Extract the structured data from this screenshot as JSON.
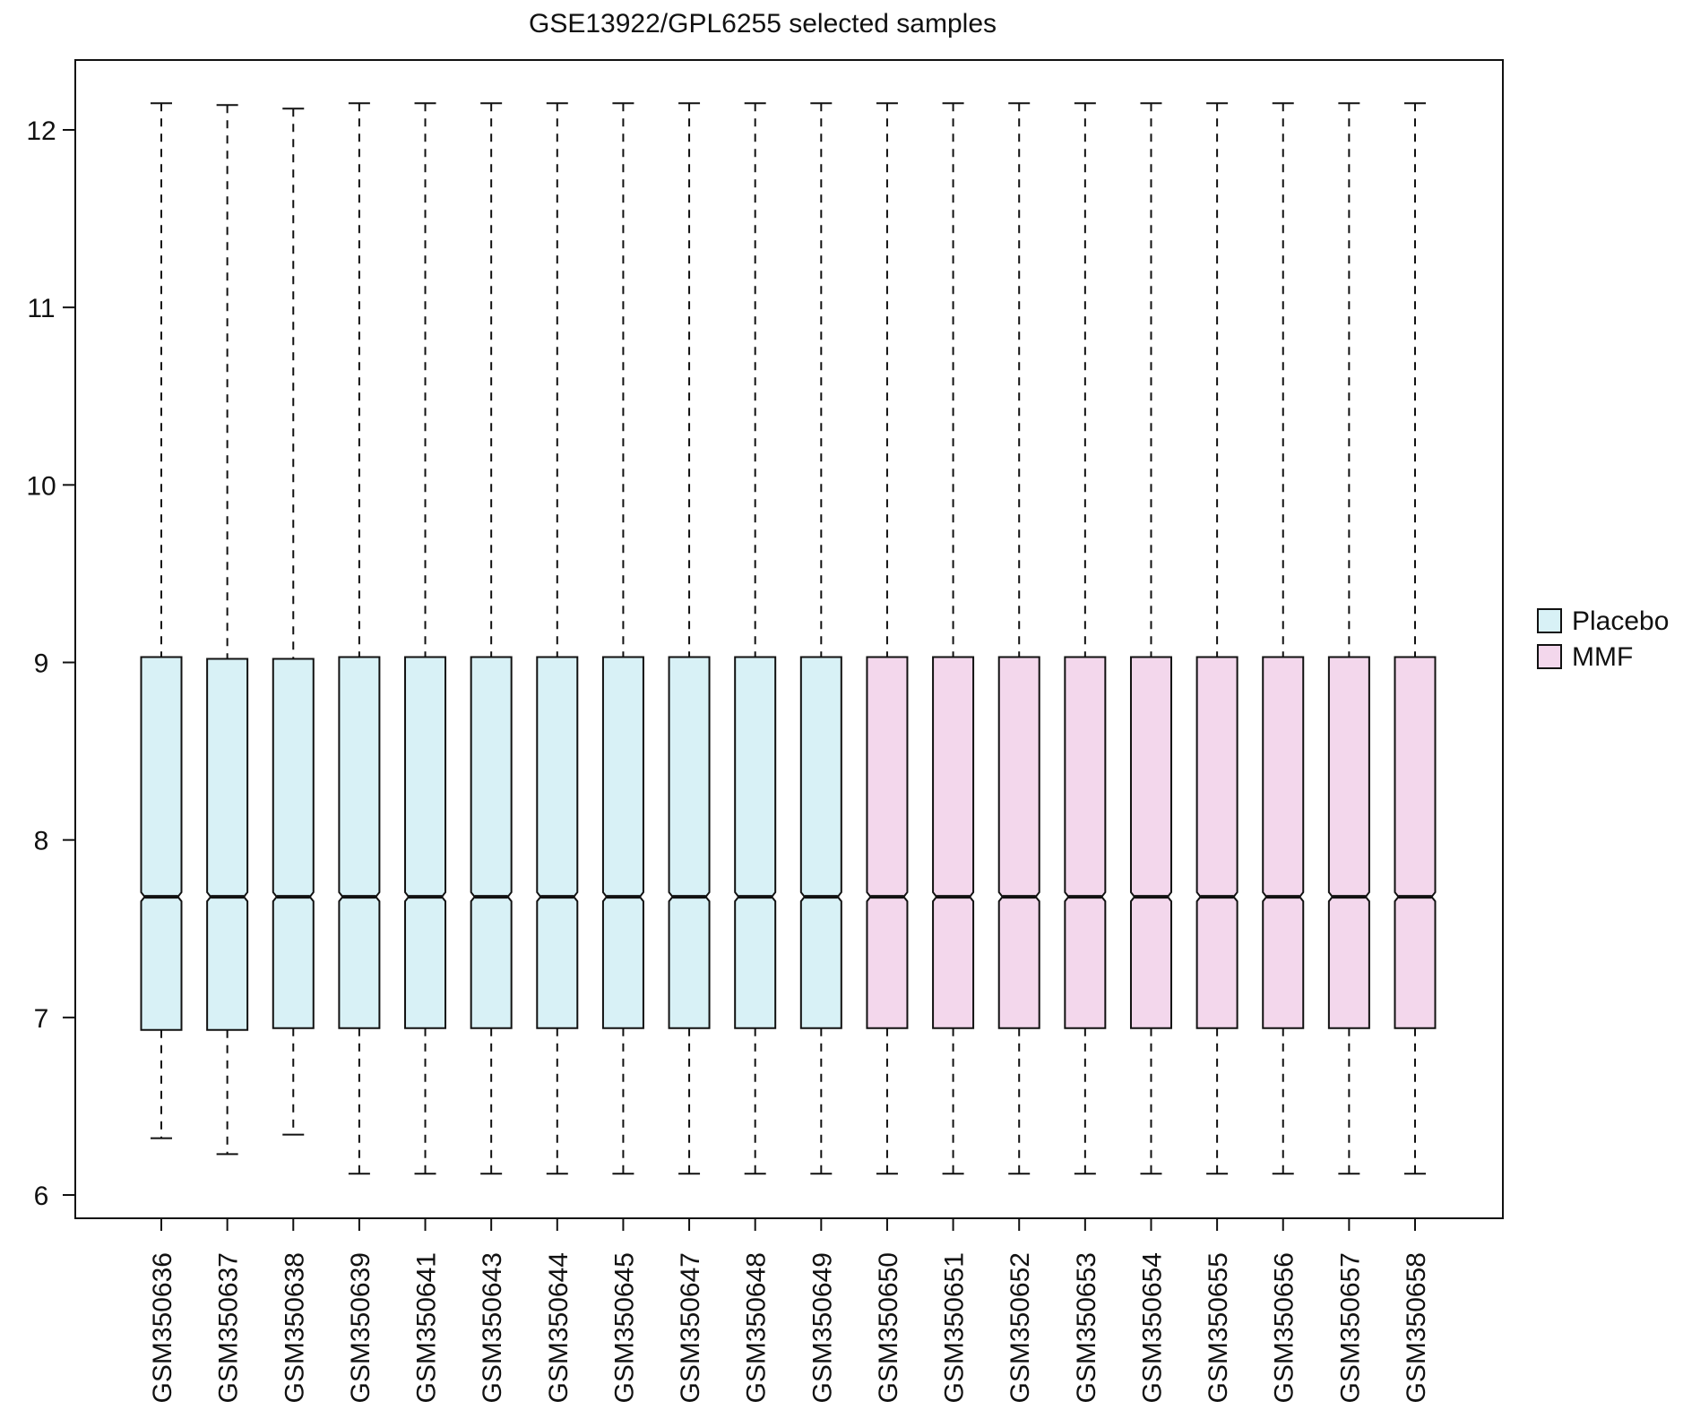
{
  "chart_data": {
    "type": "boxplot",
    "title": "GSE13922/GPL6255 selected samples",
    "xlabel": "",
    "ylabel": "",
    "ylim": [
      5.87,
      12.4
    ],
    "yticks": [
      6,
      7,
      8,
      9,
      10,
      11,
      12
    ],
    "grid": false,
    "notched": true,
    "legend_position": "right",
    "legend": [
      {
        "name": "Placebo",
        "color": "#d8f1f6"
      },
      {
        "name": "MMF",
        "color": "#f3d7ec"
      }
    ],
    "categories": [
      "GSM350636",
      "GSM350637",
      "GSM350638",
      "GSM350639",
      "GSM350641",
      "GSM350643",
      "GSM350644",
      "GSM350645",
      "GSM350647",
      "GSM350648",
      "GSM350649",
      "GSM350650",
      "GSM350651",
      "GSM350652",
      "GSM350653",
      "GSM350654",
      "GSM350655",
      "GSM350656",
      "GSM350657",
      "GSM350658"
    ],
    "groups": [
      "Placebo",
      "Placebo",
      "Placebo",
      "Placebo",
      "Placebo",
      "Placebo",
      "Placebo",
      "Placebo",
      "Placebo",
      "Placebo",
      "Placebo",
      "MMF",
      "MMF",
      "MMF",
      "MMF",
      "MMF",
      "MMF",
      "MMF",
      "MMF",
      "MMF"
    ],
    "boxes": [
      {
        "min": 6.32,
        "q1": 6.93,
        "median": 7.68,
        "q3": 9.03,
        "max": 12.15
      },
      {
        "min": 6.23,
        "q1": 6.93,
        "median": 7.68,
        "q3": 9.02,
        "max": 12.14
      },
      {
        "min": 6.34,
        "q1": 6.94,
        "median": 7.68,
        "q3": 9.02,
        "max": 12.12
      },
      {
        "min": 6.12,
        "q1": 6.94,
        "median": 7.68,
        "q3": 9.03,
        "max": 12.15
      },
      {
        "min": 6.12,
        "q1": 6.94,
        "median": 7.68,
        "q3": 9.03,
        "max": 12.15
      },
      {
        "min": 6.12,
        "q1": 6.94,
        "median": 7.68,
        "q3": 9.03,
        "max": 12.15
      },
      {
        "min": 6.12,
        "q1": 6.94,
        "median": 7.68,
        "q3": 9.03,
        "max": 12.15
      },
      {
        "min": 6.12,
        "q1": 6.94,
        "median": 7.68,
        "q3": 9.03,
        "max": 12.15
      },
      {
        "min": 6.12,
        "q1": 6.94,
        "median": 7.68,
        "q3": 9.03,
        "max": 12.15
      },
      {
        "min": 6.12,
        "q1": 6.94,
        "median": 7.68,
        "q3": 9.03,
        "max": 12.15
      },
      {
        "min": 6.12,
        "q1": 6.94,
        "median": 7.68,
        "q3": 9.03,
        "max": 12.15
      },
      {
        "min": 6.12,
        "q1": 6.94,
        "median": 7.68,
        "q3": 9.03,
        "max": 12.15
      },
      {
        "min": 6.12,
        "q1": 6.94,
        "median": 7.68,
        "q3": 9.03,
        "max": 12.15
      },
      {
        "min": 6.12,
        "q1": 6.94,
        "median": 7.68,
        "q3": 9.03,
        "max": 12.15
      },
      {
        "min": 6.12,
        "q1": 6.94,
        "median": 7.68,
        "q3": 9.03,
        "max": 12.15
      },
      {
        "min": 6.12,
        "q1": 6.94,
        "median": 7.68,
        "q3": 9.03,
        "max": 12.15
      },
      {
        "min": 6.12,
        "q1": 6.94,
        "median": 7.68,
        "q3": 9.03,
        "max": 12.15
      },
      {
        "min": 6.12,
        "q1": 6.94,
        "median": 7.68,
        "q3": 9.03,
        "max": 12.15
      },
      {
        "min": 6.12,
        "q1": 6.94,
        "median": 7.68,
        "q3": 9.03,
        "max": 12.15
      },
      {
        "min": 6.12,
        "q1": 6.94,
        "median": 7.68,
        "q3": 9.03,
        "max": 12.15
      }
    ]
  }
}
